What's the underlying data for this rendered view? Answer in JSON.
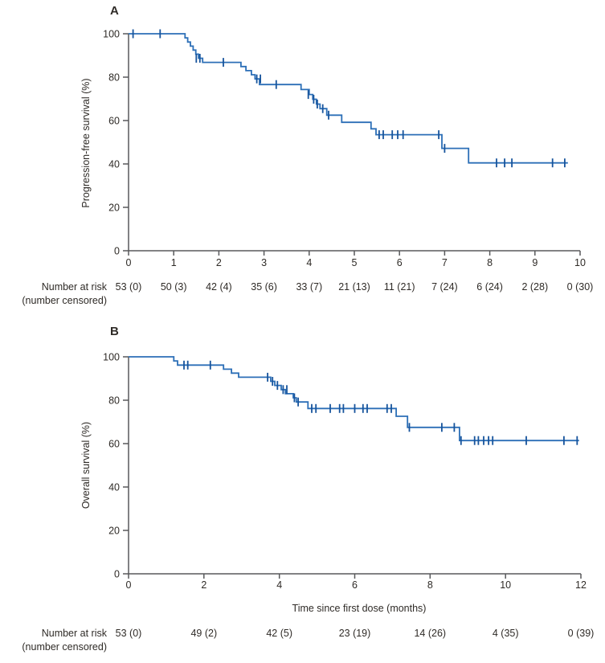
{
  "figure": {
    "background": "#ffffff",
    "risk_label_line1": "Number at risk",
    "risk_label_line2": "(number censored)",
    "colors": {
      "curve": "#2c6fb7",
      "censor": "#17549c",
      "axis": "#58595b",
      "text": "#2f2b27"
    }
  },
  "chart_data": [
    {
      "type": "line",
      "subtype": "kaplan_meier_step",
      "panel_label": "A",
      "ylabel": "Progression-free survival (%)",
      "xlabel": "",
      "xlim": [
        0,
        10
      ],
      "ylim": [
        0,
        100
      ],
      "xticks": [
        0,
        1,
        2,
        3,
        4,
        5,
        6,
        7,
        8,
        9,
        10
      ],
      "yticks": [
        0,
        20,
        40,
        60,
        80,
        100
      ],
      "grid": false,
      "legend": "none",
      "steps_pct": [
        [
          0,
          100
        ],
        [
          1.25,
          98.1
        ],
        [
          1.31,
          96.2
        ],
        [
          1.37,
          94.3
        ],
        [
          1.43,
          92.5
        ],
        [
          1.49,
          90.6
        ],
        [
          1.55,
          88.7
        ],
        [
          1.64,
          86.8
        ],
        [
          2.49,
          84.9
        ],
        [
          2.6,
          83.0
        ],
        [
          2.72,
          81.1
        ],
        [
          2.8,
          79.2
        ],
        [
          2.9,
          76.6
        ],
        [
          3.82,
          74.3
        ],
        [
          4.0,
          72.0
        ],
        [
          4.08,
          69.8
        ],
        [
          4.16,
          67.6
        ],
        [
          4.24,
          65.5
        ],
        [
          4.39,
          62.5
        ],
        [
          4.72,
          59.2
        ],
        [
          5.37,
          56.2
        ],
        [
          5.48,
          53.5
        ],
        [
          6.94,
          47.2
        ],
        [
          7.53,
          40.5
        ]
      ],
      "curve_end_x": 9.73,
      "censor_marks": [
        [
          0.1,
          100
        ],
        [
          0.7,
          100
        ],
        [
          1.5,
          88.7
        ],
        [
          1.58,
          88.7
        ],
        [
          2.1,
          86.8
        ],
        [
          2.84,
          79.2
        ],
        [
          2.92,
          79.2
        ],
        [
          3.27,
          76.6
        ],
        [
          3.98,
          72.0
        ],
        [
          4.1,
          69.8
        ],
        [
          4.18,
          67.6
        ],
        [
          4.3,
          65.5
        ],
        [
          4.43,
          62.5
        ],
        [
          5.55,
          53.5
        ],
        [
          5.64,
          53.5
        ],
        [
          5.84,
          53.5
        ],
        [
          5.96,
          53.5
        ],
        [
          6.08,
          53.5
        ],
        [
          6.87,
          53.5
        ],
        [
          7.0,
          47.2
        ],
        [
          8.15,
          40.5
        ],
        [
          8.33,
          40.5
        ],
        [
          8.49,
          40.5
        ],
        [
          9.39,
          40.5
        ],
        [
          9.66,
          40.5
        ]
      ],
      "number_at_risk": [
        "53 (0)",
        "50 (3)",
        "42 (4)",
        "35 (6)",
        "33 (7)",
        "21 (13)",
        "11 (21)",
        "7 (24)",
        "6 (24)",
        "2 (28)",
        "0 (30)"
      ]
    },
    {
      "type": "line",
      "subtype": "kaplan_meier_step",
      "panel_label": "B",
      "ylabel": "Overall survival (%)",
      "xlabel": "Time since first dose (months)",
      "xlim": [
        0,
        12
      ],
      "ylim": [
        0,
        100
      ],
      "xticks": [
        0,
        2,
        4,
        6,
        8,
        10,
        12
      ],
      "yticks": [
        0,
        20,
        40,
        60,
        80,
        100
      ],
      "grid": false,
      "legend": "none",
      "steps_pct": [
        [
          0,
          100
        ],
        [
          1.2,
          98.1
        ],
        [
          1.3,
          96.2
        ],
        [
          2.52,
          94.3
        ],
        [
          2.73,
          92.5
        ],
        [
          2.92,
          90.6
        ],
        [
          3.77,
          88.7
        ],
        [
          3.88,
          86.8
        ],
        [
          4.05,
          84.9
        ],
        [
          4.16,
          83.0
        ],
        [
          4.37,
          81.1
        ],
        [
          4.45,
          79.2
        ],
        [
          4.76,
          76.2
        ],
        [
          7.1,
          72.6
        ],
        [
          7.4,
          67.5
        ],
        [
          8.78,
          61.4
        ]
      ],
      "curve_end_x": 11.95,
      "censor_marks": [
        [
          1.47,
          96.2
        ],
        [
          1.57,
          96.2
        ],
        [
          2.17,
          96.2
        ],
        [
          3.69,
          90.6
        ],
        [
          3.82,
          88.7
        ],
        [
          3.95,
          86.8
        ],
        [
          4.1,
          84.9
        ],
        [
          4.2,
          84.9
        ],
        [
          4.4,
          81.1
        ],
        [
          4.5,
          79.2
        ],
        [
          4.86,
          76.2
        ],
        [
          4.97,
          76.2
        ],
        [
          5.35,
          76.2
        ],
        [
          5.6,
          76.2
        ],
        [
          5.7,
          76.2
        ],
        [
          6.0,
          76.2
        ],
        [
          6.22,
          76.2
        ],
        [
          6.33,
          76.2
        ],
        [
          6.86,
          76.2
        ],
        [
          6.97,
          76.2
        ],
        [
          7.45,
          67.5
        ],
        [
          8.31,
          67.5
        ],
        [
          8.64,
          67.5
        ],
        [
          8.82,
          61.4
        ],
        [
          9.18,
          61.4
        ],
        [
          9.28,
          61.4
        ],
        [
          9.42,
          61.4
        ],
        [
          9.55,
          61.4
        ],
        [
          9.66,
          61.4
        ],
        [
          10.55,
          61.4
        ],
        [
          11.55,
          61.4
        ],
        [
          11.9,
          61.4
        ]
      ],
      "number_at_risk": [
        "53 (0)",
        "49 (2)",
        "42 (5)",
        "23 (19)",
        "14 (26)",
        "4 (35)",
        "0 (39)"
      ]
    }
  ]
}
